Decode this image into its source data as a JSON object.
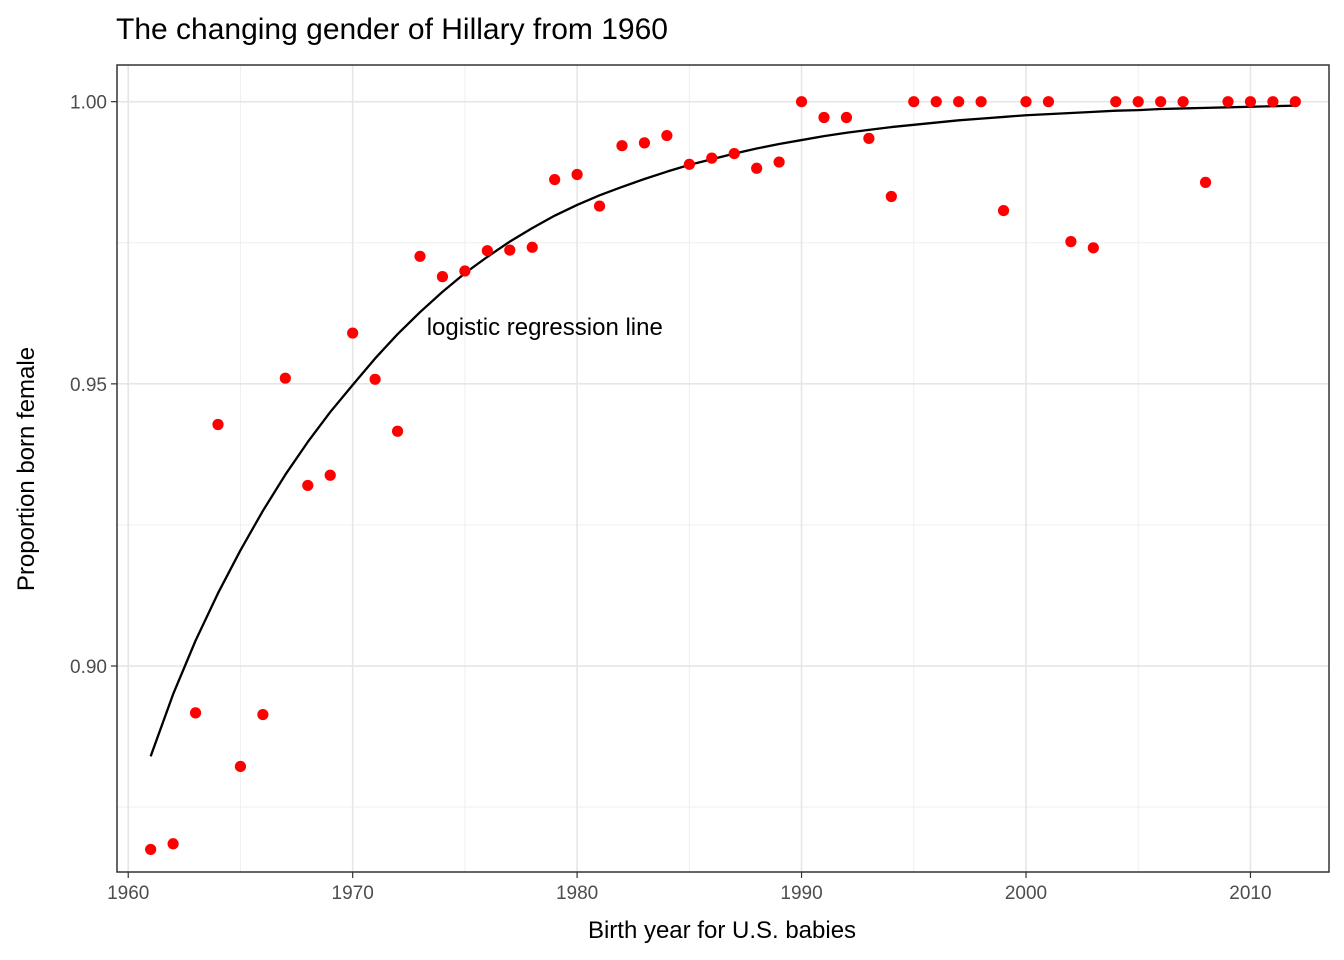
{
  "chart_data": {
    "type": "scatter",
    "title": "The changing gender of Hillary from 1960",
    "xlabel": "Birth year for U.S. babies",
    "ylabel": "Proportion born female",
    "xlim": [
      1959.5,
      2013.5
    ],
    "ylim": [
      0.8635,
      1.0065
    ],
    "x_ticks": [
      1960,
      1970,
      1980,
      1990,
      2000,
      2010
    ],
    "x_tick_labels": [
      "1960",
      "1970",
      "1980",
      "1990",
      "2000",
      "2010"
    ],
    "y_ticks": [
      0.9,
      0.95,
      1.0
    ],
    "y_tick_labels": [
      "0.90",
      "0.95",
      "1.00"
    ],
    "x_minor_ticks": [
      1965,
      1975,
      1985,
      1995,
      2005
    ],
    "y_minor_ticks": [
      0.875,
      0.925,
      0.975
    ],
    "grid": true,
    "point_color": "#ff0000",
    "line_color": "#000000",
    "annotation": {
      "text": "logistic regression line",
      "x": 1973.3,
      "y": 0.9587
    },
    "series": [
      {
        "type": "scatter",
        "x": [
          1961,
          1962,
          1963,
          1964,
          1965,
          1966,
          1967,
          1968,
          1969,
          1970,
          1971,
          1972,
          1973,
          1974,
          1975,
          1976,
          1977,
          1978,
          1979,
          1980,
          1981,
          1982,
          1983,
          1984,
          1985,
          1986,
          1987,
          1988,
          1989,
          1990,
          1991,
          1992,
          1993,
          1994,
          1995,
          1996,
          1997,
          1998,
          1999,
          2000,
          2001,
          2002,
          2003,
          2004,
          2005,
          2006,
          2007,
          2008,
          2009,
          2010,
          2011,
          2012
        ],
        "y": [
          0.8675,
          0.8685,
          0.8917,
          0.9428,
          0.8822,
          0.8914,
          0.951,
          0.932,
          0.9338,
          0.959,
          0.9508,
          0.9416,
          0.9726,
          0.969,
          0.97,
          0.9736,
          0.9737,
          0.9742,
          0.9862,
          0.9871,
          0.9815,
          0.9922,
          0.9927,
          0.994,
          0.9889,
          0.99,
          0.9908,
          0.9882,
          0.9893,
          1.0,
          0.9972,
          0.9972,
          0.9935,
          0.9832,
          1.0,
          1.0,
          1.0,
          1.0,
          0.9807,
          1.0,
          1.0,
          0.9752,
          0.9741,
          1.0,
          1.0,
          1.0,
          1.0,
          0.9857,
          1.0,
          1.0,
          1.0,
          1.0
        ]
      },
      {
        "type": "line",
        "x": [
          1961,
          1962,
          1963,
          1964,
          1965,
          1966,
          1967,
          1968,
          1969,
          1970,
          1971,
          1972,
          1973,
          1974,
          1975,
          1976,
          1977,
          1978,
          1979,
          1980,
          1981,
          1982,
          1983,
          1984,
          1985,
          1986,
          1987,
          1988,
          1989,
          1990,
          1991,
          1992,
          1993,
          1994,
          1995,
          1996,
          1997,
          1998,
          1999,
          2000,
          2001,
          2002,
          2003,
          2004,
          2005,
          2006,
          2007,
          2008,
          2009,
          2010,
          2011,
          2012
        ],
        "y": [
          0.884,
          0.895,
          0.9045,
          0.9129,
          0.9205,
          0.9275,
          0.9339,
          0.9397,
          0.945,
          0.9498,
          0.9545,
          0.9588,
          0.9627,
          0.9663,
          0.9696,
          0.9725,
          0.9752,
          0.9776,
          0.9798,
          0.9817,
          0.9834,
          0.9849,
          0.9863,
          0.9876,
          0.9888,
          0.9898,
          0.9908,
          0.9917,
          0.9925,
          0.9932,
          0.9939,
          0.9945,
          0.995,
          0.9955,
          0.9959,
          0.9963,
          0.9967,
          0.997,
          0.9973,
          0.9976,
          0.9978,
          0.998,
          0.9982,
          0.9984,
          0.9985,
          0.9987,
          0.9988,
          0.9989,
          0.999,
          0.9991,
          0.9992,
          0.9993
        ]
      }
    ]
  }
}
